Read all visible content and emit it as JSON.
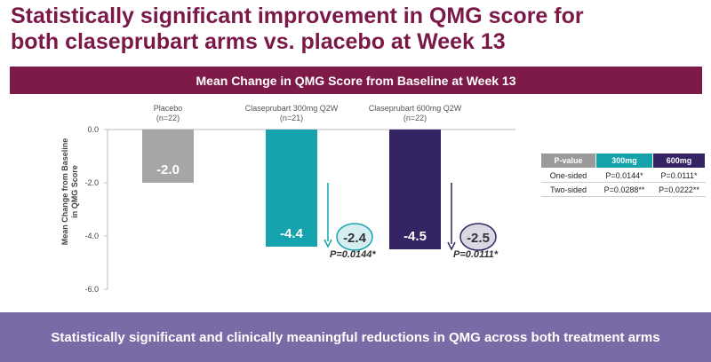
{
  "slide": {
    "title_line1": "Statistically significant improvement in QMG score for",
    "title_line2": "both claseprubart arms vs. placebo at Week 13",
    "banner": "Mean Change in QMG Score from Baseline at Week 13",
    "footer": "Statistically significant and clinically meaningful reductions in QMG across both treatment arms"
  },
  "colors": {
    "title": "#7a1848",
    "banner": "#7d1a47",
    "footer": "#7a6ba6",
    "placebo": "#a6a6a6",
    "mg300": "#16a3ad",
    "mg600": "#352463"
  },
  "chart_data": {
    "type": "bar",
    "title": "Mean Change in QMG Score from Baseline at Week 13",
    "ylabel_line1": "Mean Change from Baseline",
    "ylabel_line2": "in QMG Score",
    "ylim": [
      -6.0,
      0.0
    ],
    "yticks": [
      "0.0",
      "-2.0",
      "-4.0",
      "-6.0"
    ],
    "ytick_values": [
      0,
      -2,
      -4,
      -6
    ],
    "categories": [
      {
        "name": "Placebo",
        "n": "(n=22)",
        "value": -2.0,
        "label": "-2.0",
        "color": "#a6a6a6"
      },
      {
        "name": "Claseprubart 300mg Q2W",
        "n": "(n=21)",
        "value": -4.4,
        "label": "-4.4",
        "color": "#16a3ad"
      },
      {
        "name": "Claseprubart 600mg Q2W",
        "n": "(n=22)",
        "value": -4.5,
        "label": "-4.5",
        "color": "#352463"
      }
    ],
    "differences": [
      {
        "category_index": 1,
        "value": -2.4,
        "label": "-2.4",
        "p_label": "P=0.0144*",
        "color": "#16a3ad"
      },
      {
        "category_index": 2,
        "value": -2.5,
        "label": "-2.5",
        "p_label": "P=0.0111*",
        "color": "#352463"
      }
    ]
  },
  "ptable": {
    "headers": [
      "P-value",
      "300mg",
      "600mg"
    ],
    "rows": [
      [
        "One-sided",
        "P=0.0144*",
        "P=0.0111*"
      ],
      [
        "Two-sided",
        "P=0.0288**",
        "P=0.0222**"
      ]
    ]
  }
}
